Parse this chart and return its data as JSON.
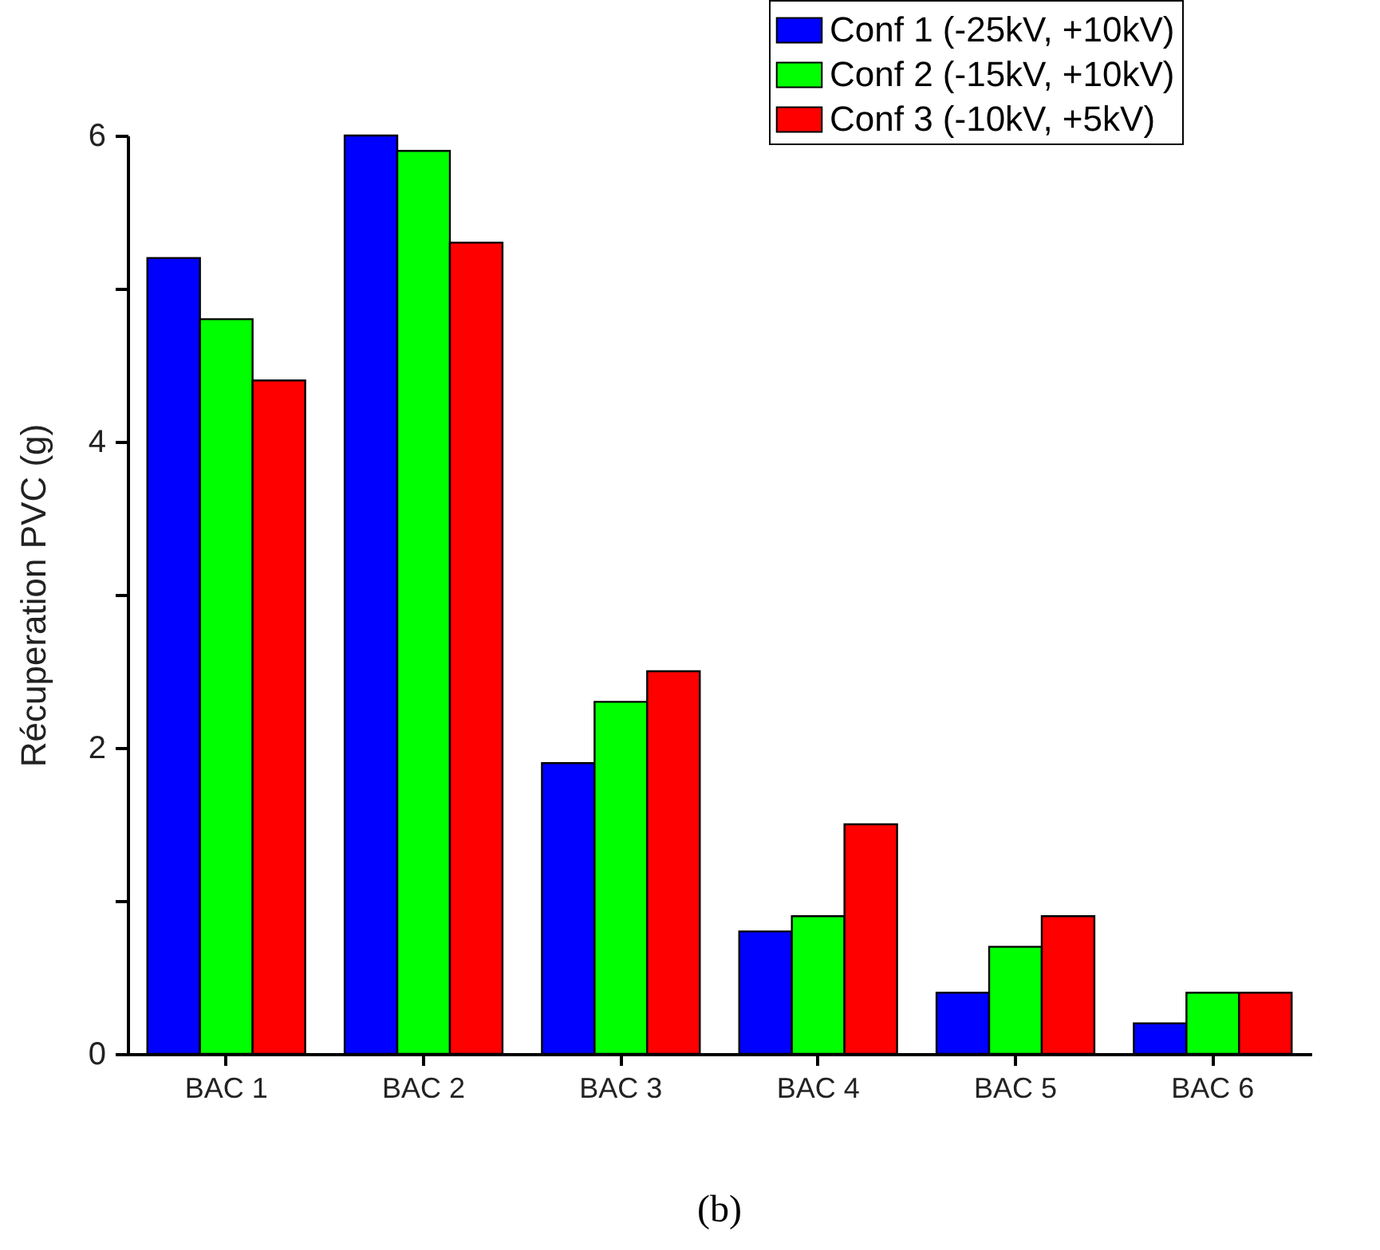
{
  "chart_data": {
    "type": "bar",
    "ylabel": "Récuperation PVC (g)",
    "categories": [
      "BAC 1",
      "BAC 2",
      "BAC 3",
      "BAC 4",
      "BAC 5",
      "BAC 6"
    ],
    "series": [
      {
        "name": "Conf 1 (-25kV, +10kV)",
        "color": "#0000ff",
        "values": [
          5.2,
          6.0,
          1.9,
          0.8,
          0.4,
          0.2
        ]
      },
      {
        "name": "Conf 2 (-15kV, +10kV)",
        "color": "#00ff00",
        "values": [
          4.8,
          5.9,
          2.3,
          0.9,
          0.7,
          0.4
        ]
      },
      {
        "name": "Conf 3 (-10kV, +5kV)",
        "color": "#ff0000",
        "values": [
          4.4,
          5.3,
          2.5,
          1.5,
          0.9,
          0.4
        ]
      }
    ],
    "ylim": [
      0,
      6
    ],
    "yticks": [
      0,
      {
        "value": 1,
        "label": null
      },
      2,
      {
        "value": 3,
        "label": null
      },
      4,
      {
        "value": 5,
        "label": null
      },
      6
    ],
    "grid": false,
    "legend": "top right",
    "annotations": [
      "(b)"
    ]
  }
}
